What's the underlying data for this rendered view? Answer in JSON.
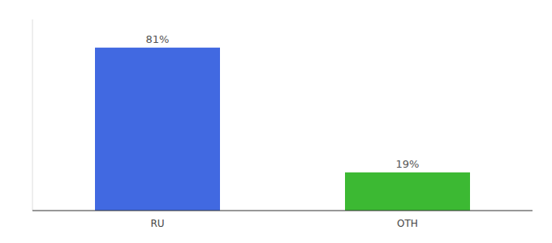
{
  "chart_data": {
    "type": "bar",
    "categories": [
      "RU",
      "OTH"
    ],
    "values": [
      81,
      19
    ],
    "value_labels": [
      "81%",
      "19%"
    ],
    "colors": [
      "#4169e1",
      "#3cb933"
    ],
    "ylim": [
      0,
      95
    ],
    "data_labels": true,
    "tick_labels": "x"
  }
}
